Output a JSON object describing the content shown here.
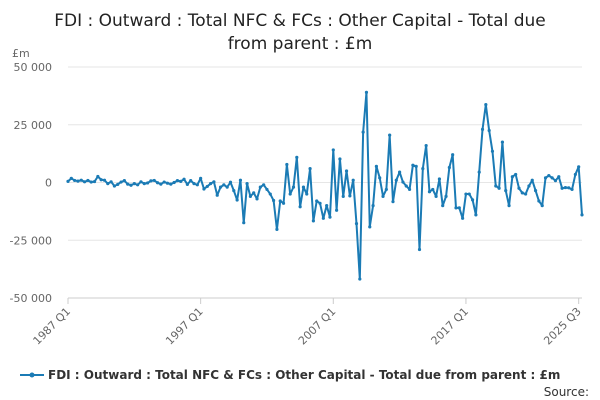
{
  "chart_data": {
    "type": "line",
    "title": "FDI : Outward : Total NFC & FCs : Other Capital - Total due from parent : £m",
    "title_lines": [
      "FDI : Outward : Total NFC & FCs : Other Capital - Total due",
      "from parent : £m"
    ],
    "unit_label": "£m",
    "xlabel": "",
    "ylabel": "",
    "ylim": [
      -50000,
      50000
    ],
    "yticks": [
      50000,
      25000,
      0,
      -25000,
      -50000
    ],
    "ytick_labels": [
      "50 000",
      "25 000",
      "0",
      "-25 000",
      "-50 000"
    ],
    "xticks": [
      {
        "label": "1987 Q1",
        "index": 0
      },
      {
        "label": "1997 Q1",
        "index": 40
      },
      {
        "label": "2007 Q1",
        "index": 80
      },
      {
        "label": "2017 Q1",
        "index": 120
      },
      {
        "label": "2025 Q3",
        "index": 154
      }
    ],
    "grid": true,
    "legend_position": "bottom",
    "series": [
      {
        "name": "FDI : Outward : Total NFC & FCs : Other Capital - Total due from parent : £m",
        "color": "#1b7bb5",
        "values": [
          500,
          1800,
          900,
          600,
          1000,
          300,
          900,
          200,
          400,
          2600,
          1200,
          1000,
          -500,
          300,
          -1500,
          -800,
          200,
          800,
          -700,
          -1200,
          -500,
          -1000,
          300,
          -500,
          -200,
          700,
          900,
          -100,
          -700,
          200,
          -300,
          -700,
          0,
          800,
          500,
          1400,
          -800,
          800,
          -500,
          -1000,
          1800,
          -2800,
          -1700,
          -500,
          300,
          -5500,
          -2000,
          -1000,
          -2000,
          100,
          -3500,
          -7600,
          1000,
          -17400,
          -500,
          -6000,
          -4500,
          -7100,
          -2000,
          -1000,
          -3000,
          -5000,
          -7800,
          -20300,
          -8000,
          -9000,
          7800,
          -5000,
          -2000,
          10900,
          -10500,
          -2000,
          -5000,
          6000,
          -16600,
          -8000,
          -9000,
          -15500,
          -10000,
          -15000,
          14100,
          -12000,
          10200,
          -6000,
          5000,
          -5800,
          1000,
          -17800,
          -41800,
          21800,
          39000,
          -19200,
          -10000,
          7000,
          2000,
          -6000,
          -3000,
          20500,
          -8300,
          1000,
          4500,
          200,
          -1500,
          -3000,
          7500,
          7000,
          -29000,
          6000,
          16000,
          -4000,
          -3000,
          -6000,
          1500,
          -10000,
          -6000,
          6500,
          12000,
          -11000,
          -11000,
          -15500,
          -5000,
          -5000,
          -7500,
          -14000,
          4500,
          23000,
          33700,
          22500,
          13500,
          -1500,
          -2500,
          17500,
          -3500,
          -10000,
          2500,
          3500,
          -2500,
          -4500,
          -5000,
          -1500,
          1000,
          -3500,
          -8000,
          -10000,
          2000,
          3000,
          2000,
          800,
          2500,
          -2500,
          -2200,
          -2300,
          -3000,
          3500,
          6800,
          -14000
        ]
      }
    ]
  },
  "legend": {
    "label": "FDI : Outward : Total NFC & FCs : Other Capital - Total due from parent : £m"
  },
  "source_label": "Source:"
}
